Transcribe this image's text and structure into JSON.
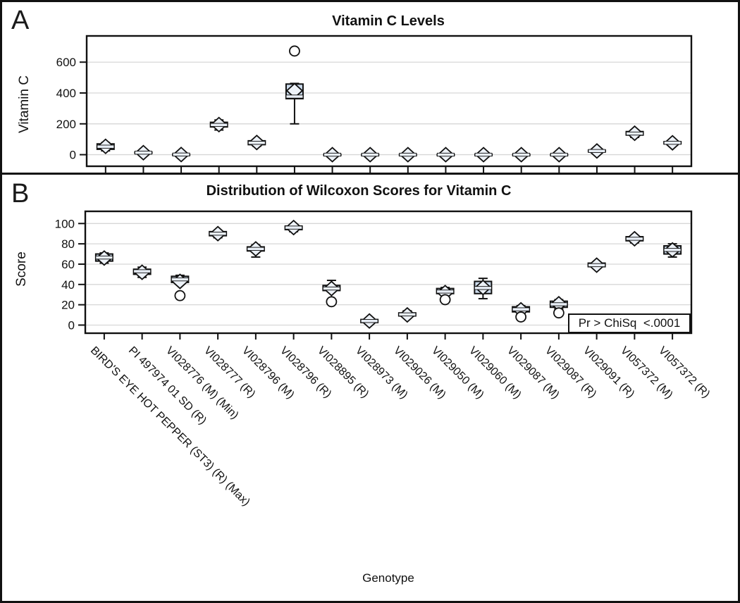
{
  "panel_a": {
    "letter": "A",
    "title": "Vitamin C Levels",
    "ylabel": "Vitamin C"
  },
  "panel_b": {
    "letter": "B",
    "title": "Distribution of Wilcoxon Scores for Vitamin C",
    "ylabel": "Score",
    "annotation": "Pr > ChiSq  <.0001"
  },
  "xlabel": "Genotype",
  "categories": [
    "BIRD'S EYE HOT PEPPER (ST3) (R) (Max)",
    "PI 497974 01 SD (R)",
    "VI028776 (M) (Min)",
    "VI028777 (R)",
    "VI028796 (M)",
    "VI028796 (R)",
    "VI028895 (R)",
    "VI028973 (M)",
    "VI029026 (M)",
    "VI029050 (M)",
    "VI029060 (M)",
    "VI029087 (M)",
    "VI029087 (R)",
    "VI029091 (R)",
    "VI057372 (M)",
    "VI057372 (R)"
  ],
  "colors": {
    "axis": "#111111",
    "gridline": "#d7d7d7",
    "box_fill": "#ccdbec",
    "median_fill": "#e8eef6",
    "diamond_fill": "#edf2f8",
    "outlier_fill": "#ffffff"
  },
  "chart_data": [
    {
      "type": "box",
      "title": "Vitamin C Levels",
      "xlabel": "Genotype",
      "ylabel": "Vitamin C",
      "ylim": [
        -75,
        770
      ],
      "yticks": [
        0,
        200,
        400,
        600
      ],
      "grid": true,
      "legend": "none",
      "categories": [
        "BIRD'S EYE HOT PEPPER (ST3) (R) (Max)",
        "PI 497974 01 SD (R)",
        "VI028776 (M) (Min)",
        "VI028777 (R)",
        "VI028796 (M)",
        "VI028796 (R)",
        "VI028895 (R)",
        "VI028973 (M)",
        "VI029026 (M)",
        "VI029050 (M)",
        "VI029060 (M)",
        "VI029087 (M)",
        "VI029087 (R)",
        "VI029091 (R)",
        "VI057372 (M)",
        "VI057372 (R)"
      ],
      "stats": [
        {
          "lo": 25,
          "q1": 35,
          "med": 52,
          "q3": 70,
          "hi": 78,
          "mean": 54,
          "outliers": []
        },
        {
          "lo": 5,
          "q1": 9,
          "med": 13,
          "q3": 17,
          "hi": 20,
          "mean": 13,
          "outliers": []
        },
        {
          "lo": -3,
          "q1": -1,
          "med": 1,
          "q3": 3,
          "hi": 5,
          "mean": 1,
          "outliers": []
        },
        {
          "lo": 160,
          "q1": 180,
          "med": 193,
          "q3": 210,
          "hi": 225,
          "mean": 195,
          "outliers": []
        },
        {
          "lo": 55,
          "q1": 65,
          "med": 77,
          "q3": 90,
          "hi": 95,
          "mean": 79,
          "outliers": []
        },
        {
          "lo": 200,
          "q1": 363,
          "med": 377,
          "q3": 458,
          "hi": 462,
          "mean": 415,
          "outliers": [
            672
          ]
        },
        {
          "lo": -4,
          "q1": -2,
          "med": 0,
          "q3": 2,
          "hi": 4,
          "mean": 0,
          "outliers": []
        },
        {
          "lo": -4,
          "q1": -2,
          "med": 0,
          "q3": 2,
          "hi": 4,
          "mean": 0,
          "outliers": []
        },
        {
          "lo": -4,
          "q1": -2,
          "med": 0,
          "q3": 2,
          "hi": 4,
          "mean": 0,
          "outliers": []
        },
        {
          "lo": -4,
          "q1": -2,
          "med": 0,
          "q3": 2,
          "hi": 4,
          "mean": 0,
          "outliers": []
        },
        {
          "lo": -4,
          "q1": -2,
          "med": 0,
          "q3": 2,
          "hi": 4,
          "mean": 0,
          "outliers": []
        },
        {
          "lo": -4,
          "q1": -2,
          "med": 0,
          "q3": 2,
          "hi": 4,
          "mean": 0,
          "outliers": []
        },
        {
          "lo": -4,
          "q1": -2,
          "med": 0,
          "q3": 2,
          "hi": 4,
          "mean": 0,
          "outliers": []
        },
        {
          "lo": 14,
          "q1": 19,
          "med": 24,
          "q3": 29,
          "hi": 33,
          "mean": 24,
          "outliers": []
        },
        {
          "lo": 112,
          "q1": 127,
          "med": 137,
          "q3": 150,
          "hi": 160,
          "mean": 139,
          "outliers": []
        },
        {
          "lo": 62,
          "q1": 70,
          "med": 77,
          "q3": 84,
          "hi": 90,
          "mean": 77,
          "outliers": []
        }
      ]
    },
    {
      "type": "box",
      "title": "Distribution of Wilcoxon Scores for Vitamin C",
      "xlabel": "Genotype",
      "ylabel": "Score",
      "ylim": [
        -8,
        112
      ],
      "yticks": [
        0,
        20,
        40,
        60,
        80,
        100
      ],
      "grid": true,
      "legend": "none",
      "annotation": "Pr > ChiSq  <.0001",
      "categories": [
        "BIRD'S EYE HOT PEPPER (ST3) (R) (Max)",
        "PI 497974 01 SD (R)",
        "VI028776 (M) (Min)",
        "VI028777 (R)",
        "VI028796 (M)",
        "VI028796 (R)",
        "VI028895 (R)",
        "VI028973 (M)",
        "VI029026 (M)",
        "VI029050 (M)",
        "VI029060 (M)",
        "VI029087 (M)",
        "VI029087 (R)",
        "VI029091 (R)",
        "VI057372 (M)",
        "VI057372 (R)"
      ],
      "stats": [
        {
          "lo": 61,
          "q1": 63,
          "med": 66.5,
          "q3": 70,
          "hi": 71,
          "mean": 66,
          "outliers": []
        },
        {
          "lo": 47,
          "q1": 50,
          "med": 53,
          "q3": 55,
          "hi": 57,
          "mean": 52,
          "outliers": []
        },
        {
          "lo": 40,
          "q1": 42,
          "med": 45,
          "q3": 48,
          "hi": 49,
          "mean": 43,
          "outliers": [
            29
          ]
        },
        {
          "lo": 86,
          "q1": 88,
          "med": 90,
          "q3": 92,
          "hi": 93,
          "mean": 90,
          "outliers": []
        },
        {
          "lo": 67,
          "q1": 73,
          "med": 75,
          "q3": 77,
          "hi": 79,
          "mean": 75,
          "outliers": []
        },
        {
          "lo": 92,
          "q1": 94,
          "med": 96,
          "q3": 97.5,
          "hi": 99,
          "mean": 96,
          "outliers": []
        },
        {
          "lo": 33,
          "q1": 34,
          "med": 36,
          "q3": 39,
          "hi": 44,
          "mean": 36,
          "outliers": [
            23
          ]
        },
        {
          "lo": 1,
          "q1": 2.5,
          "med": 4,
          "q3": 5.5,
          "hi": 7,
          "mean": 4,
          "outliers": []
        },
        {
          "lo": 7,
          "q1": 9,
          "med": 10.5,
          "q3": 12,
          "hi": 14,
          "mean": 10,
          "outliers": []
        },
        {
          "lo": 29,
          "q1": 31,
          "med": 33,
          "q3": 36,
          "hi": 37,
          "mean": 32,
          "outliers": [
            25
          ]
        },
        {
          "lo": 26,
          "q1": 31,
          "med": 36.5,
          "q3": 43,
          "hi": 46,
          "mean": 37,
          "outliers": []
        },
        {
          "lo": 11,
          "q1": 13,
          "med": 15.5,
          "q3": 18,
          "hi": 19,
          "mean": 15,
          "outliers": [
            8
          ]
        },
        {
          "lo": 16,
          "q1": 17.5,
          "med": 20.5,
          "q3": 23.5,
          "hi": 25,
          "mean": 21,
          "outliers": [
            12
          ]
        },
        {
          "lo": 56,
          "q1": 57.5,
          "med": 59,
          "q3": 61,
          "hi": 62,
          "mean": 59,
          "outliers": []
        },
        {
          "lo": 81,
          "q1": 83,
          "med": 85,
          "q3": 87,
          "hi": 88,
          "mean": 85,
          "outliers": []
        },
        {
          "lo": 67,
          "q1": 70,
          "med": 74,
          "q3": 78,
          "hi": 80,
          "mean": 74,
          "outliers": []
        }
      ]
    }
  ]
}
